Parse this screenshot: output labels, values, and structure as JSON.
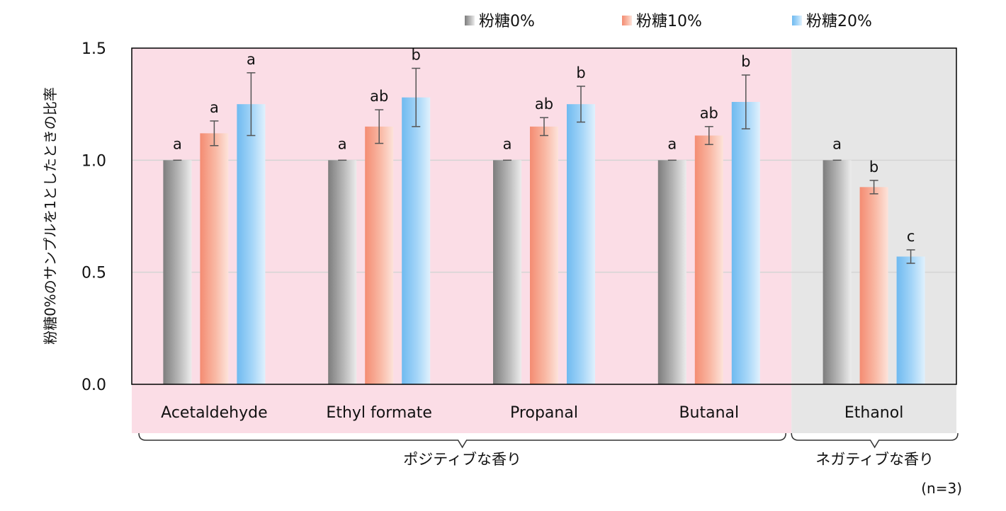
{
  "chart_data": {
    "type": "bar",
    "ylabel": "粉糖0%のサンプルを1としたときの比率",
    "ylim": [
      0,
      1.5
    ],
    "yticks": [
      "0.0",
      "0.5",
      "1.0",
      "1.5"
    ],
    "grid": true,
    "legend_position": "top",
    "categories": [
      "Acetaldehyde",
      "Ethyl formate",
      "Propanal",
      "Butanal",
      "Ethanol"
    ],
    "series": [
      {
        "name": "粉糖0%",
        "color": "#9a9a9a",
        "values": [
          1.0,
          1.0,
          1.0,
          1.0,
          1.0
        ],
        "errors": [
          0,
          0,
          0,
          0,
          0
        ],
        "significance": [
          "a",
          "a",
          "a",
          "a",
          "a"
        ]
      },
      {
        "name": "粉糖10%",
        "color": "#f7a08a",
        "values": [
          1.12,
          1.15,
          1.15,
          1.11,
          0.88
        ],
        "errors": [
          0.055,
          0.075,
          0.04,
          0.04,
          0.03
        ],
        "significance": [
          "a",
          "ab",
          "ab",
          "ab",
          "b"
        ]
      },
      {
        "name": "粉糖20%",
        "color": "#8ccaf5",
        "values": [
          1.25,
          1.28,
          1.25,
          1.26,
          0.57
        ],
        "errors": [
          0.14,
          0.13,
          0.08,
          0.12,
          0.03
        ],
        "significance": [
          "a",
          "b",
          "b",
          "b",
          "c"
        ]
      }
    ],
    "groups": [
      {
        "label": "ポジティブな香り",
        "categories": [
          "Acetaldehyde",
          "Ethyl formate",
          "Propanal",
          "Butanal"
        ],
        "color": "#fbdde6"
      },
      {
        "label": "ネガティブな香り",
        "categories": [
          "Ethanol"
        ],
        "color": "#e6e6e6"
      }
    ],
    "note": "(n=3)"
  }
}
